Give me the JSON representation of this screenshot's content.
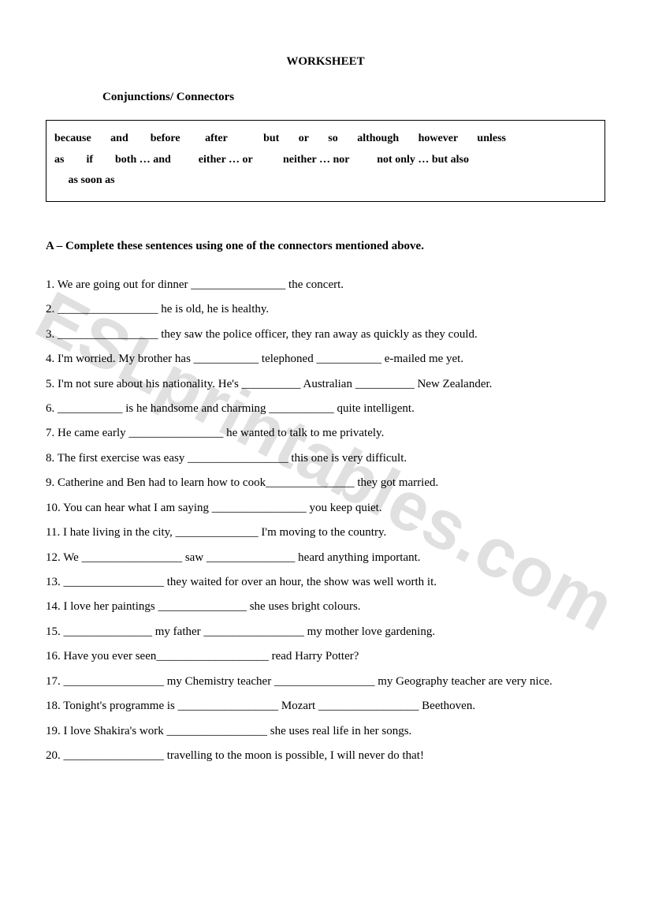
{
  "title": "WORKSHEET",
  "subtitle": "Conjunctions/ Connectors",
  "word_box": {
    "row1": "because       and        before         after             but       or       so       although       however       unless",
    "row2": "as        if        both … and          either … or           neither … nor          not only … but also",
    "row3": "     as soon as"
  },
  "instruction": "A – Complete these sentences using one of the connectors mentioned above.",
  "questions": [
    "1. We are going out for dinner ________________ the concert.",
    "2. _________________ he is old, he is healthy.",
    "3. _________________ they saw the police officer, they ran away as quickly as they could.",
    "4.  I'm worried. My brother has ___________ telephoned ___________ e-mailed me yet.",
    "5. I'm not sure about his nationality. He's __________ Australian __________ New Zealander.",
    "6.  ___________ is he handsome and charming ___________ quite intelligent.",
    "7.  He came early ________________ he wanted to talk to me privately.",
    "8.  The first exercise was easy _________________ this one is very difficult.",
    "9.  Catherine and Ben had to learn how to cook_______________ they got married.",
    "10.  You can hear what I am saying ________________ you keep quiet.",
    "11.  I hate living in the city, ______________ I'm moving to the country.",
    "12.  We _________________ saw _______________ heard anything important.",
    "13.  _________________ they waited for over an hour, the show was well worth it.",
    "14.  I love her paintings _______________ she uses bright colours.",
    "15.  _______________ my father _________________ my mother love gardening.",
    "16.  Have you ever seen___________________ read Harry Potter?",
    "17.  _________________ my Chemistry teacher _________________ my Geography teacher are very nice.",
    "18.  Tonight's programme is _________________ Mozart _________________ Beethoven.",
    "19.  I love Shakira's work _________________ she uses real life in her songs.",
    "20.  _________________ travelling to the moon is possible, I will never do that!"
  ],
  "watermark": "ESLprintables.com",
  "colors": {
    "text": "#000000",
    "background": "#ffffff",
    "watermark": "rgba(0,0,0,0.12)",
    "border": "#000000"
  }
}
